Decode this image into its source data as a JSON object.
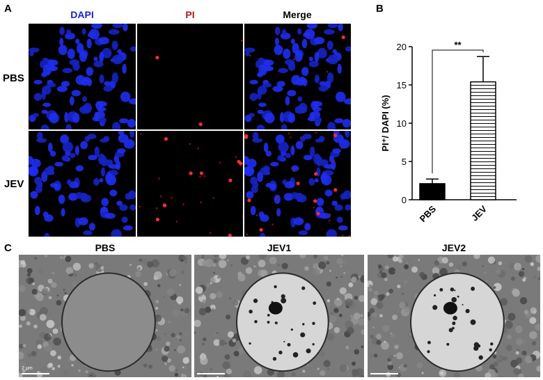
{
  "panel_a": {
    "letter": "A",
    "columns": [
      {
        "label": "DAPI",
        "color": "#1a22c8"
      },
      {
        "label": "PI",
        "color": "#b01818"
      },
      {
        "label": "Merge",
        "color": "#000000"
      }
    ],
    "rows": [
      "PBS",
      "JEV"
    ]
  },
  "panel_b": {
    "letter": "B"
  },
  "panel_c": {
    "letter": "C",
    "images": [
      "PBS",
      "JEV1",
      "JEV2"
    ],
    "scale_label": "2 μm"
  },
  "chart_data": {
    "type": "bar",
    "categories": [
      "PBS",
      "JEV"
    ],
    "values": [
      2.1,
      15.4
    ],
    "errors": [
      0.6,
      3.3
    ],
    "ylabel": "PI⁺/ DAPI (%)",
    "ylim": [
      0,
      20
    ],
    "yticks": [
      0,
      5,
      10,
      15,
      20
    ],
    "significance": "**",
    "bar_styles": [
      "solid-black",
      "horizontal-hatch"
    ]
  }
}
